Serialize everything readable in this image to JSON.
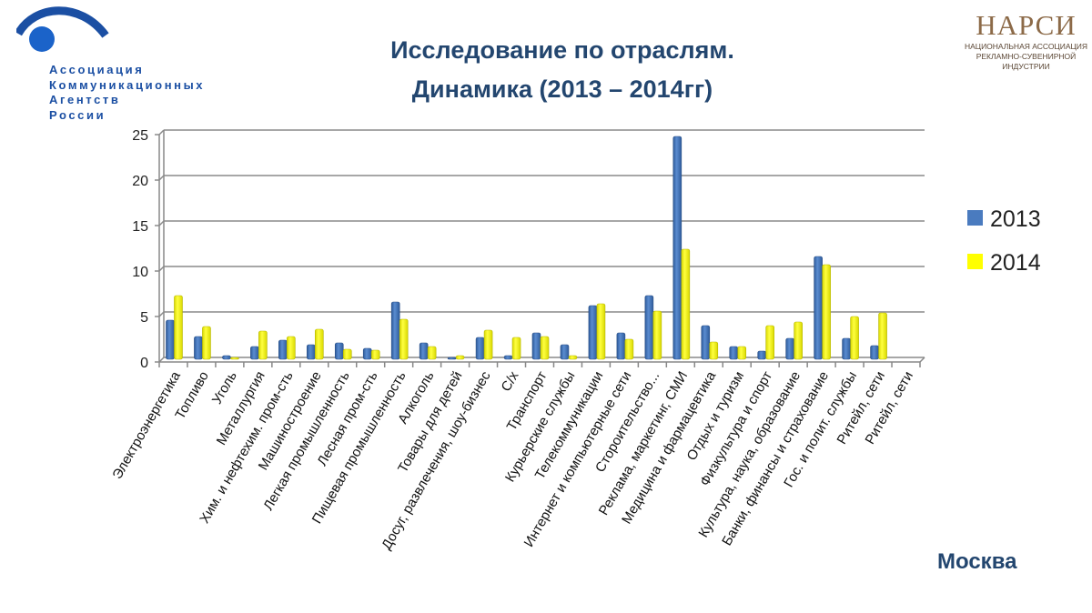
{
  "title_line1": "Исследование по отраслям.",
  "title_line2": "Динамика (2013 – 2014гг)",
  "logo_left": {
    "lines": [
      "Ассоциация",
      "Коммуникационных",
      "Агентств",
      "России"
    ]
  },
  "logo_right": {
    "mark": "НАРСИ",
    "lines": [
      "НАЦИОНАЛЬНАЯ АССОЦИАЦИЯ",
      "РЕКЛАМНО-СУВЕНИРНОЙ",
      "ИНДУСТРИИ"
    ]
  },
  "city": "Москва",
  "chart_data": {
    "type": "bar",
    "title": "",
    "xlabel": "",
    "ylabel": "",
    "ylim": [
      0,
      25
    ],
    "yticks": [
      "0",
      "5",
      "10",
      "15",
      "20",
      "25"
    ],
    "grid": true,
    "legend_position": "right",
    "categories": [
      "Электроэнергетика",
      "Топливо",
      "Уголь",
      "Металлургия",
      "Хим. и нефтехим. пром-сть",
      "Машиностроение",
      "Легкая промышленность",
      "Лесная  пром-сть",
      "Пищевая промышленность",
      "Алкоголь",
      "Товары для детей",
      "Досуг, развлечения, шоу-бизнес",
      "С/х",
      "Транспорт",
      "Курьерские службы",
      "Телекоммуникации",
      "Интернет и компьютерные сети",
      "Стороительство...",
      "Реклама, маркетинг, СМИ",
      "Медицина и фармацевтика",
      "Отдых и туризм",
      "Физкультура и спорт",
      "Культура, наука, образование",
      "Банки, финансы и страхование",
      "Гос. и полит. службы",
      "Ритейл, сети",
      "Ритейл, сети"
    ],
    "series": [
      {
        "name": "2013",
        "color": "#4a7bbf",
        "values": [
          4.3,
          2.5,
          0.4,
          1.4,
          2.1,
          1.6,
          1.8,
          1.2,
          6.3,
          1.8,
          0.2,
          2.4,
          0.4,
          2.9,
          1.6,
          5.9,
          2.9,
          7.0,
          24.5,
          3.7,
          1.4,
          0.9,
          2.3,
          11.3,
          2.3,
          1.5,
          null
        ]
      },
      {
        "name": "2014",
        "color": "#ffff00",
        "values": [
          7.0,
          3.6,
          0.2,
          3.1,
          2.5,
          3.3,
          1.1,
          1.0,
          4.4,
          1.4,
          0.4,
          3.2,
          2.4,
          2.5,
          0.4,
          6.1,
          2.2,
          5.3,
          12.1,
          1.9,
          1.4,
          3.7,
          4.1,
          10.4,
          4.7,
          5.1,
          null
        ]
      }
    ]
  }
}
